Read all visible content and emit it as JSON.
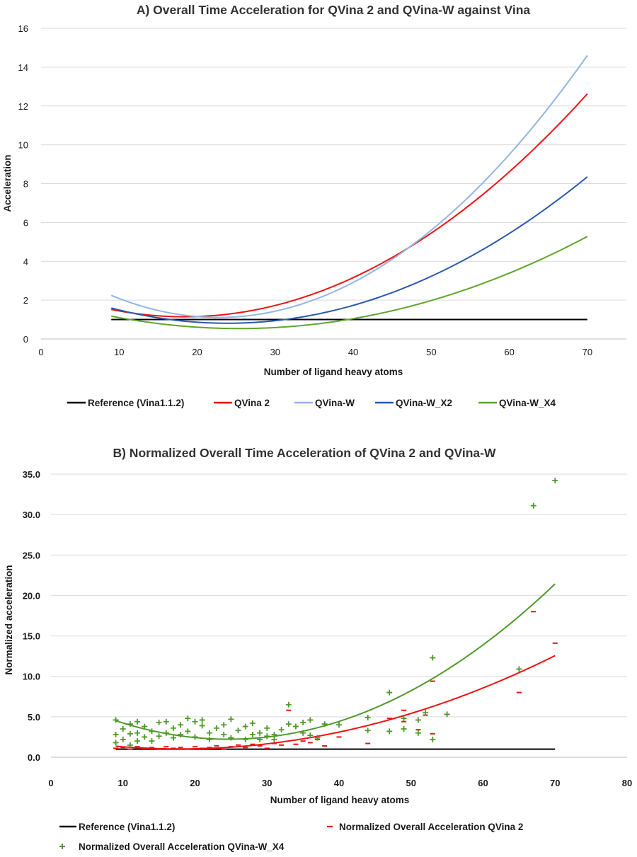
{
  "chart_data": [
    {
      "type": "line",
      "title": "A) Overall Time Acceleration for QVina 2 and QVina-W against Vina",
      "xlabel": "Number of ligand heavy atoms",
      "ylabel": "Acceleration",
      "xlim": [
        0,
        75
      ],
      "ylim": [
        0,
        16
      ],
      "xticks": [
        "0",
        "10",
        "20",
        "30",
        "40",
        "50",
        "60",
        "70"
      ],
      "yticks": [
        "0",
        "2",
        "4",
        "6",
        "8",
        "10",
        "12",
        "14",
        "16"
      ],
      "grid": "horizontal",
      "legend": "bottom",
      "series": [
        {
          "name": "Reference (Vina1.1.2)",
          "color": "#000000",
          "x": [
            9,
            20,
            30,
            40,
            50,
            60,
            70
          ],
          "y": [
            1.0,
            1.0,
            1.0,
            1.0,
            1.0,
            1.0,
            1.0
          ]
        },
        {
          "name": "QVina 2",
          "color": "#ee1111",
          "x": [
            9,
            20,
            30,
            40,
            50,
            60,
            70
          ],
          "y": [
            1.55,
            1.2,
            1.6,
            3.1,
            5.5,
            8.8,
            12.5
          ]
        },
        {
          "name": "QVina-W",
          "color": "#8fb6e2",
          "x": [
            9,
            20,
            30,
            40,
            50,
            60,
            70
          ],
          "y": [
            2.3,
            1.2,
            1.25,
            2.8,
            5.7,
            9.8,
            14.4
          ]
        },
        {
          "name": "QVina-W_X2",
          "color": "#2a58b0",
          "x": [
            9,
            20,
            30,
            40,
            50,
            60,
            70
          ],
          "y": [
            1.6,
            0.9,
            0.9,
            1.65,
            3.3,
            5.5,
            8.3
          ]
        },
        {
          "name": "QVina-W_X4",
          "color": "#5da52c",
          "x": [
            9,
            20,
            30,
            40,
            50,
            60,
            70
          ],
          "y": [
            1.15,
            0.62,
            0.65,
            1.05,
            1.9,
            3.4,
            5.3
          ]
        }
      ]
    },
    {
      "type": "scatter",
      "title": "B) Normalized Overall Time Acceleration of QVina 2 and QVina-W",
      "xlabel": "Number of ligand heavy atoms",
      "ylabel": "Normalized acceleration",
      "xlim": [
        0,
        80
      ],
      "ylim": [
        0,
        35
      ],
      "xticks": [
        "0",
        "10",
        "20",
        "30",
        "40",
        "50",
        "60",
        "70",
        "80"
      ],
      "yticks": [
        "0.0",
        "5.0",
        "10.0",
        "15.0",
        "20.0",
        "25.0",
        "30.0",
        "35.0"
      ],
      "grid": "horizontal",
      "legend": "bottom",
      "series": [
        {
          "name": "Reference (Vina1.1.2)",
          "kind": "line",
          "color": "#000000",
          "x": [
            9,
            70
          ],
          "y": [
            1.0,
            1.0
          ]
        },
        {
          "name": "Normalized Overall Acceleration QVina 2",
          "kind": "scatter",
          "marker": "dash",
          "color": "#ee1111",
          "points": [
            [
              9,
              1.1
            ],
            [
              10,
              1.2
            ],
            [
              11,
              1.0
            ],
            [
              12,
              1.3
            ],
            [
              13,
              1.1
            ],
            [
              14,
              1.2
            ],
            [
              15,
              1.0
            ],
            [
              16,
              1.3
            ],
            [
              17,
              1.1
            ],
            [
              18,
              1.2
            ],
            [
              19,
              1.0
            ],
            [
              20,
              1.3
            ],
            [
              21,
              1.1
            ],
            [
              22,
              1.2
            ],
            [
              23,
              1.4
            ],
            [
              24,
              1.0
            ],
            [
              25,
              1.3
            ],
            [
              26,
              1.5
            ],
            [
              27,
              1.2
            ],
            [
              28,
              1.6
            ],
            [
              29,
              1.4
            ],
            [
              30,
              1.1
            ],
            [
              31,
              1.7
            ],
            [
              32,
              1.5
            ],
            [
              33,
              5.8
            ],
            [
              34,
              1.6
            ],
            [
              35,
              2.0
            ],
            [
              36,
              1.8
            ],
            [
              37,
              2.2
            ],
            [
              38,
              1.4
            ],
            [
              40,
              2.5
            ],
            [
              44,
              1.7
            ],
            [
              47,
              4.8
            ],
            [
              49,
              4.4
            ],
            [
              49,
              5.8
            ],
            [
              51,
              3.4
            ],
            [
              52,
              5.2
            ],
            [
              53,
              9.4
            ],
            [
              53,
              2.9
            ],
            [
              55,
              5.3
            ],
            [
              65,
              8.0
            ],
            [
              67,
              18.0
            ],
            [
              70,
              14.1
            ]
          ]
        },
        {
          "name": "Normalized Overall Acceleration QVina-W_X4",
          "kind": "scatter",
          "marker": "plus",
          "color": "#4d9a2a",
          "points": [
            [
              9,
              4.6
            ],
            [
              9,
              2.8
            ],
            [
              9,
              1.8
            ],
            [
              10,
              3.5
            ],
            [
              10,
              2.2
            ],
            [
              11,
              4.1
            ],
            [
              11,
              2.9
            ],
            [
              11,
              1.5
            ],
            [
              12,
              4.4
            ],
            [
              12,
              3.0
            ],
            [
              12,
              2.0
            ],
            [
              13,
              3.8
            ],
            [
              13,
              2.5
            ],
            [
              14,
              3.2
            ],
            [
              14,
              2.0
            ],
            [
              15,
              4.3
            ],
            [
              15,
              2.6
            ],
            [
              16,
              3.0
            ],
            [
              16,
              4.4
            ],
            [
              17,
              2.4
            ],
            [
              17,
              3.6
            ],
            [
              18,
              4.0
            ],
            [
              18,
              2.8
            ],
            [
              19,
              4.8
            ],
            [
              19,
              3.2
            ],
            [
              20,
              4.4
            ],
            [
              20,
              2.5
            ],
            [
              21,
              3.9
            ],
            [
              21,
              4.6
            ],
            [
              22,
              3.0
            ],
            [
              22,
              2.2
            ],
            [
              23,
              3.6
            ],
            [
              24,
              2.8
            ],
            [
              24,
              4.0
            ],
            [
              25,
              4.7
            ],
            [
              25,
              2.4
            ],
            [
              26,
              3.3
            ],
            [
              27,
              2.2
            ],
            [
              27,
              3.8
            ],
            [
              28,
              2.8
            ],
            [
              28,
              4.2
            ],
            [
              29,
              3.0
            ],
            [
              29,
              2.2
            ],
            [
              30,
              2.6
            ],
            [
              30,
              3.6
            ],
            [
              31,
              2.8
            ],
            [
              31,
              2.2
            ],
            [
              32,
              3.4
            ],
            [
              33,
              6.5
            ],
            [
              33,
              4.1
            ],
            [
              34,
              3.8
            ],
            [
              35,
              4.3
            ],
            [
              35,
              3.0
            ],
            [
              36,
              2.7
            ],
            [
              36,
              4.6
            ],
            [
              37,
              2.4
            ],
            [
              38,
              4.1
            ],
            [
              40,
              4.0
            ],
            [
              44,
              4.9
            ],
            [
              44,
              3.3
            ],
            [
              47,
              8.0
            ],
            [
              47,
              3.2
            ],
            [
              49,
              3.5
            ],
            [
              49,
              4.8
            ],
            [
              51,
              3.0
            ],
            [
              51,
              4.6
            ],
            [
              52,
              5.5
            ],
            [
              53,
              12.3
            ],
            [
              53,
              2.2
            ],
            [
              55,
              5.3
            ],
            [
              65,
              10.9
            ],
            [
              67,
              31.1
            ],
            [
              70,
              34.2
            ]
          ]
        },
        {
          "name": "",
          "kind": "trend",
          "color": "#ee1111",
          "x": [
            9,
            20,
            30,
            40,
            50,
            60,
            70
          ],
          "y": [
            1.3,
            1.2,
            1.6,
            3.0,
            5.4,
            8.7,
            12.5
          ]
        },
        {
          "name": "",
          "kind": "trend",
          "color": "#4d9a2a",
          "x": [
            9,
            20,
            30,
            40,
            50,
            60,
            70
          ],
          "y": [
            4.6,
            2.4,
            2.4,
            4.2,
            8.4,
            14.2,
            21.2
          ]
        }
      ]
    }
  ]
}
